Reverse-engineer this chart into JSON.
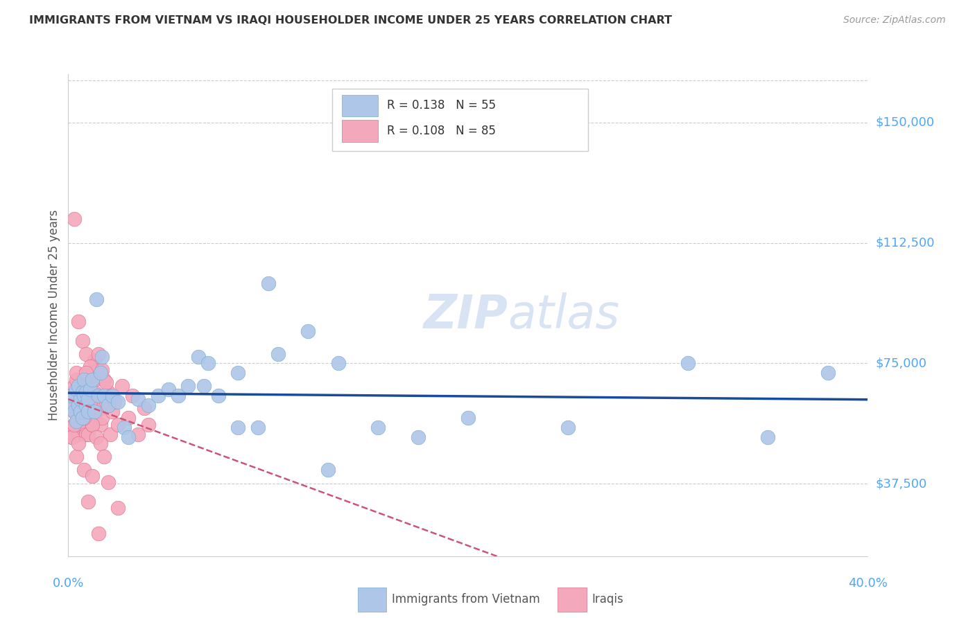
{
  "title": "IMMIGRANTS FROM VIETNAM VS IRAQI HOUSEHOLDER INCOME UNDER 25 YEARS CORRELATION CHART",
  "source": "Source: ZipAtlas.com",
  "ylabel": "Householder Income Under 25 years",
  "ytick_labels": [
    "$37,500",
    "$75,000",
    "$112,500",
    "$150,000"
  ],
  "ytick_values": [
    37500,
    75000,
    112500,
    150000
  ],
  "xmin": 0.0,
  "xmax": 0.4,
  "ymin": 15000,
  "ymax": 165000,
  "legend_R_vietnam": "0.138",
  "legend_N_vietnam": "55",
  "legend_R_iraqi": "0.108",
  "legend_N_iraqi": "85",
  "background_color": "#ffffff",
  "grid_color": "#cccccc",
  "axis_label_color": "#4da6ff",
  "vietnam_color": "#aec6e8",
  "vietnam_edge_color": "#7aaad4",
  "iraqi_color": "#f4a8bc",
  "iraqi_edge_color": "#e07090",
  "vietnam_line_color": "#1a4a9a",
  "iraqi_line_color": "#cc5577",
  "vietnam_points_x": [
    0.001,
    0.002,
    0.003,
    0.004,
    0.004,
    0.005,
    0.005,
    0.006,
    0.006,
    0.007,
    0.007,
    0.008,
    0.008,
    0.009,
    0.009,
    0.01,
    0.01,
    0.011,
    0.012,
    0.013,
    0.014,
    0.015,
    0.016,
    0.017,
    0.018,
    0.02,
    0.022,
    0.025,
    0.028,
    0.03,
    0.035,
    0.04,
    0.045,
    0.05,
    0.055,
    0.06,
    0.065,
    0.068,
    0.075,
    0.085,
    0.095,
    0.105,
    0.12,
    0.135,
    0.155,
    0.175,
    0.2,
    0.25,
    0.31,
    0.35,
    0.38,
    0.1,
    0.07,
    0.085,
    0.13
  ],
  "vietnam_points_y": [
    62000,
    65000,
    60000,
    67000,
    57000,
    62000,
    68000,
    60000,
    64000,
    66000,
    58000,
    65000,
    70000,
    62000,
    66000,
    64000,
    60000,
    67000,
    70000,
    60000,
    95000,
    65000,
    72000,
    77000,
    65000,
    62000,
    65000,
    63000,
    55000,
    52000,
    64000,
    62000,
    65000,
    67000,
    65000,
    68000,
    77000,
    68000,
    65000,
    72000,
    55000,
    78000,
    85000,
    75000,
    55000,
    52000,
    58000,
    55000,
    75000,
    52000,
    72000,
    100000,
    75000,
    55000,
    42000
  ],
  "iraqi_points_x": [
    0.001,
    0.001,
    0.002,
    0.002,
    0.003,
    0.003,
    0.003,
    0.004,
    0.004,
    0.004,
    0.005,
    0.005,
    0.005,
    0.006,
    0.006,
    0.006,
    0.007,
    0.007,
    0.008,
    0.008,
    0.008,
    0.009,
    0.009,
    0.01,
    0.01,
    0.01,
    0.011,
    0.011,
    0.012,
    0.012,
    0.013,
    0.013,
    0.014,
    0.014,
    0.015,
    0.015,
    0.016,
    0.016,
    0.017,
    0.018,
    0.019,
    0.02,
    0.021,
    0.022,
    0.023,
    0.025,
    0.027,
    0.03,
    0.032,
    0.035,
    0.038,
    0.04,
    0.003,
    0.005,
    0.007,
    0.009,
    0.011,
    0.013,
    0.015,
    0.017,
    0.019,
    0.021,
    0.004,
    0.006,
    0.008,
    0.01,
    0.012,
    0.014,
    0.016,
    0.018,
    0.002,
    0.004,
    0.008,
    0.02,
    0.025,
    0.015,
    0.01,
    0.012,
    0.006,
    0.007,
    0.009,
    0.011,
    0.003,
    0.005,
    0.008
  ],
  "iraqi_points_y": [
    65000,
    55000,
    62000,
    52000,
    68000,
    60000,
    55000,
    57000,
    63000,
    70000,
    58000,
    65000,
    53000,
    56000,
    61000,
    68000,
    63000,
    70000,
    56000,
    58000,
    65000,
    53000,
    61000,
    58000,
    53000,
    68000,
    68000,
    63000,
    56000,
    70000,
    76000,
    66000,
    63000,
    60000,
    73000,
    65000,
    61000,
    56000,
    58000,
    70000,
    63000,
    66000,
    53000,
    60000,
    63000,
    56000,
    68000,
    58000,
    65000,
    53000,
    61000,
    56000,
    120000,
    88000,
    82000,
    78000,
    74000,
    70000,
    78000,
    73000,
    69000,
    65000,
    72000,
    68000,
    64000,
    60000,
    56000,
    52000,
    50000,
    46000,
    52000,
    46000,
    42000,
    38000,
    30000,
    22000,
    32000,
    40000,
    63000,
    67000,
    72000,
    62000,
    56000,
    50000,
    58000
  ]
}
